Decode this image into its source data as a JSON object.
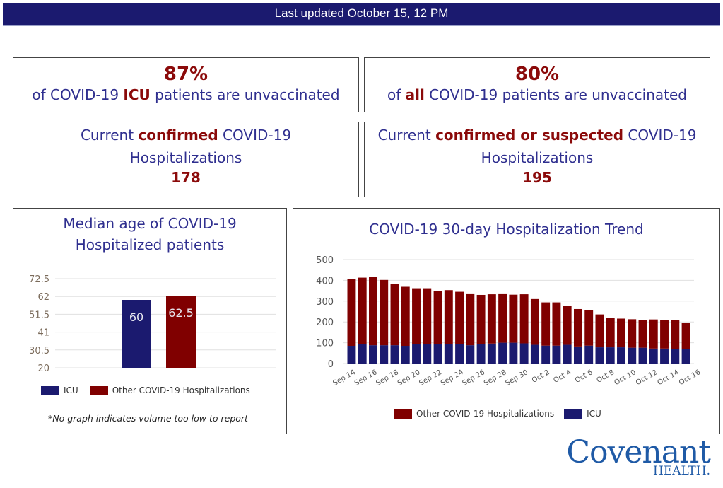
{
  "banner": {
    "text": "Last updated October 15, 12 PM"
  },
  "stats": {
    "icu_unvaccinated": {
      "value": "87%",
      "pre": "of COVID-19 ",
      "emph": "ICU",
      "post": " patients are unvaccinated"
    },
    "all_unvaccinated": {
      "value": "80%",
      "pre": "of ",
      "emph": "all",
      "post": " COVID-19 patients are unvaccinated"
    },
    "confirmed": {
      "pre": "Current ",
      "emph": "confirmed",
      "post": " COVID-19",
      "line2": "Hospitalizations",
      "value": "178"
    },
    "confirmed_or_suspected": {
      "pre": "Current ",
      "emph": "confirmed or suspected",
      "post": " COVID-19",
      "line2": "Hospitalizations",
      "value": "195"
    }
  },
  "colors": {
    "navy": "#1b1a6f",
    "maroon": "#800000",
    "title_blue": "#2f2f8f"
  },
  "chart_data": [
    {
      "type": "bar",
      "title": "Median age of COVID-19 Hospitalized patients",
      "title_lines": [
        "Median age of COVID-19",
        "Hospitalized patients"
      ],
      "categories": [
        "ICU",
        "Other COVID-19 Hospitalizations"
      ],
      "values": [
        60,
        62.5
      ],
      "value_labels": [
        "60",
        "62.5"
      ],
      "colors": [
        "#1b1a6f",
        "#800000"
      ],
      "ylim": [
        20,
        72.5
      ],
      "yticks": [
        20,
        30.5,
        41,
        51.5,
        62,
        72.5
      ],
      "ytick_labels": [
        "20",
        "30.5",
        "41",
        "51.5",
        "62",
        "72.5"
      ],
      "legend": [
        "ICU",
        "Other COVID-19 Hospitalizations"
      ],
      "legend_position": "bottom",
      "grid": true,
      "note": "*No graph indicates volume too low to report"
    },
    {
      "type": "bar",
      "stacked": true,
      "title": "COVID-19 30-day Hospitalization Trend",
      "x": [
        "Sep 14",
        "Sep 15",
        "Sep 16",
        "Sep 17",
        "Sep 18",
        "Sep 19",
        "Sep 20",
        "Sep 21",
        "Sep 22",
        "Sep 23",
        "Sep 24",
        "Sep 25",
        "Sep 26",
        "Sep 27",
        "Sep 28",
        "Sep 29",
        "Sep 30",
        "Oct 1",
        "Oct 2",
        "Oct 3",
        "Oct 4",
        "Oct 5",
        "Oct 6",
        "Oct 7",
        "Oct 8",
        "Oct 9",
        "Oct 10",
        "Oct 11",
        "Oct 12",
        "Oct 13",
        "Oct 14",
        "Oct 15"
      ],
      "xtick_labels": [
        "Sep 14",
        "Sep 16",
        "Sep 18",
        "Sep 20",
        "Sep 22",
        "Sep 24",
        "Sep 26",
        "Sep 28",
        "Sep 30",
        "Oct 2",
        "Oct 4",
        "Oct 6",
        "Oct 8",
        "Oct 10",
        "Oct 12",
        "Oct 14",
        "Oct 16"
      ],
      "series": [
        {
          "name": "ICU",
          "color": "#1b1a6f",
          "values": [
            85,
            92,
            88,
            88,
            88,
            85,
            92,
            92,
            92,
            92,
            92,
            88,
            92,
            96,
            100,
            100,
            97,
            90,
            86,
            86,
            90,
            82,
            86,
            78,
            78,
            78,
            76,
            76,
            72,
            72,
            70,
            70
          ]
        },
        {
          "name": "Other COVID-19 Hospitalizations",
          "color": "#800000",
          "values": [
            320,
            321,
            330,
            314,
            293,
            284,
            270,
            270,
            258,
            261,
            253,
            249,
            238,
            237,
            237,
            231,
            236,
            220,
            208,
            208,
            188,
            180,
            171,
            158,
            142,
            138,
            137,
            134,
            140,
            138,
            138,
            125
          ]
        }
      ],
      "ylim": [
        0,
        500
      ],
      "yticks": [
        0,
        100,
        200,
        300,
        400,
        500
      ],
      "legend": [
        "Other COVID-19 Hospitalizations",
        "ICU"
      ],
      "legend_position": "bottom",
      "grid": true
    }
  ],
  "logo": {
    "main": "Covenant",
    "sub": "HEALTH."
  }
}
